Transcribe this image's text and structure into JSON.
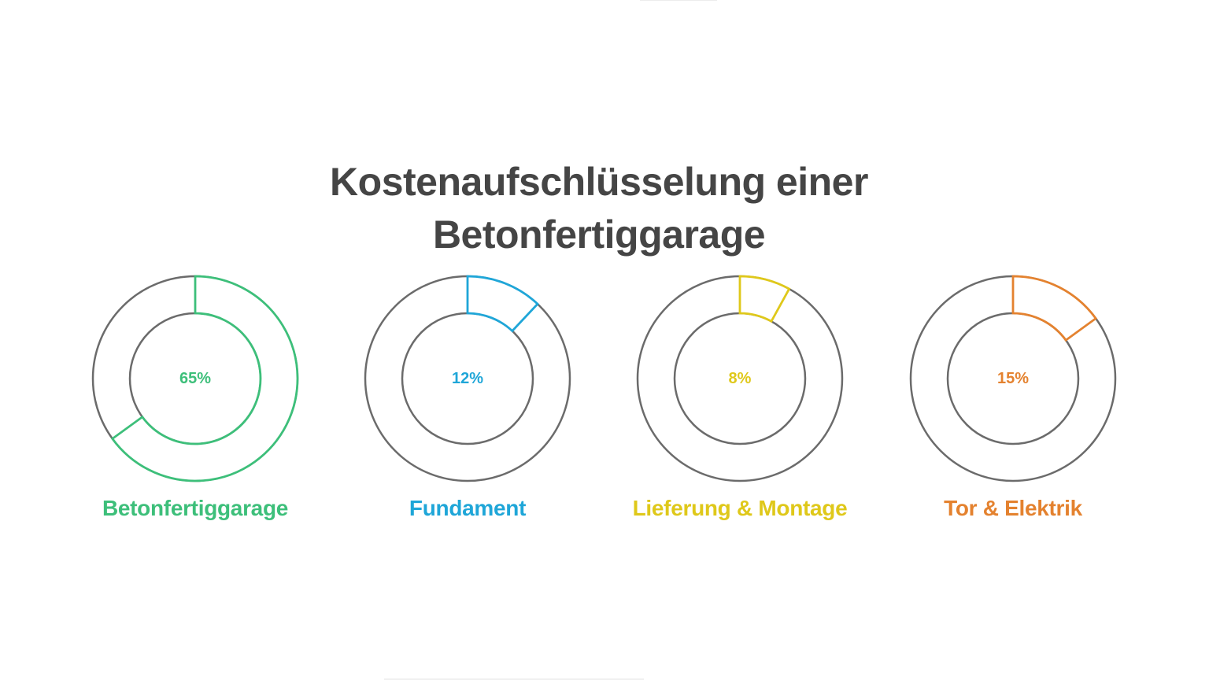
{
  "title": {
    "line1": "Kostenaufschlüsselung einer",
    "line2": "Betonfertiggarage"
  },
  "segments": [
    {
      "label": "Betonfertiggarage",
      "percent": 65,
      "percent_text": "65%",
      "color": "#3dbf7a"
    },
    {
      "label": "Fundament",
      "percent": 12,
      "percent_text": "12%",
      "color": "#1fa6d8"
    },
    {
      "label": "Lieferung & Montage",
      "percent": 8,
      "percent_text": "8%",
      "color": "#dfc81a"
    },
    {
      "label": "Tor & Elektrik",
      "percent": 15,
      "percent_text": "15%",
      "color": "#e4822f"
    }
  ],
  "ring_color": "#6b6b6b",
  "chart_data": {
    "type": "pie",
    "title": "Kostenaufschlüsselung einer Betonfertiggarage",
    "categories": [
      "Betonfertiggarage",
      "Fundament",
      "Lieferung & Montage",
      "Tor & Elektrik"
    ],
    "values": [
      65,
      12,
      8,
      15
    ],
    "unit": "%",
    "style": "separate donut gauges, one per category",
    "colors": [
      "#3dbf7a",
      "#1fa6d8",
      "#dfc81a",
      "#e4822f"
    ],
    "legend": "labels below each donut"
  }
}
